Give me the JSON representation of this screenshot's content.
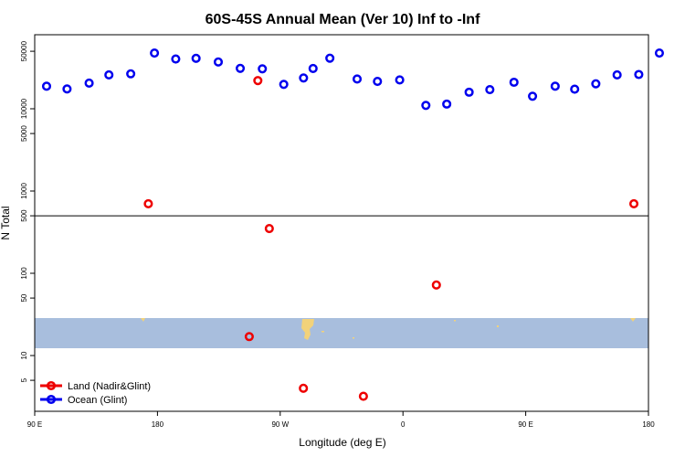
{
  "chart_data": {
    "type": "scatter",
    "title": "60S-45S Annual Mean (Ver 10)   Inf to -Inf",
    "xlabel": "Longitude (deg E)",
    "ylabel": "N Total",
    "y_scale": "log",
    "ylim": [
      2,
      80000
    ],
    "x_ticks": [
      {
        "value": 90,
        "label": "90 E"
      },
      {
        "value": 180,
        "label": "180"
      },
      {
        "value": 270,
        "label": "90 W"
      },
      {
        "value": 360,
        "label": "0"
      },
      {
        "value": 450,
        "label": "90 E"
      },
      {
        "value": 540,
        "label": "180"
      }
    ],
    "y_ticks": [
      {
        "value": 5,
        "label": "5"
      },
      {
        "value": 10,
        "label": "10"
      },
      {
        "value": 50,
        "label": "50"
      },
      {
        "value": 100,
        "label": "100"
      },
      {
        "value": 500,
        "label": "500"
      },
      {
        "value": 1000,
        "label": "1000"
      },
      {
        "value": 5000,
        "label": "5000"
      },
      {
        "value": 10000,
        "label": "10000"
      },
      {
        "value": 50000,
        "label": "50000"
      }
    ],
    "reference_line_y": 500,
    "map_strip": {
      "lat_range": "60S-45S",
      "ocean_color": "#a8bedd",
      "land_color": "#f2d27a"
    },
    "series": [
      {
        "name": "Land (Nadir&Glint)",
        "color": "#ee0000",
        "points": [
          [
            253.6,
            22000
          ],
          [
            173.3,
            700
          ],
          [
            262,
            350
          ],
          [
            384.5,
            72
          ],
          [
            247.3,
            17
          ],
          [
            287,
            4
          ],
          [
            331,
            3.2
          ],
          [
            529.3,
            700
          ]
        ]
      },
      {
        "name": "Ocean (Glint)",
        "color": "#0000ee",
        "points": [
          [
            98.7,
            18800
          ],
          [
            113.7,
            17400
          ],
          [
            129.9,
            20500
          ],
          [
            144.4,
            25800
          ],
          [
            160.4,
            26600
          ],
          [
            177.8,
            47600
          ],
          [
            193.4,
            40300
          ],
          [
            208.3,
            41000
          ],
          [
            224.6,
            37000
          ],
          [
            240.7,
            31000
          ],
          [
            256.9,
            30600
          ],
          [
            272.6,
            19800
          ],
          [
            287.1,
            23700
          ],
          [
            294.1,
            30900
          ],
          [
            306.4,
            41200
          ],
          [
            326.4,
            23000
          ],
          [
            341.3,
            21500
          ],
          [
            357.6,
            22400
          ],
          [
            376.8,
            11000
          ],
          [
            392.1,
            11400
          ],
          [
            408.5,
            15900
          ],
          [
            423.7,
            17100
          ],
          [
            441.4,
            21000
          ],
          [
            455.0,
            14200
          ],
          [
            471.6,
            18800
          ],
          [
            485.9,
            17300
          ],
          [
            501.4,
            20100
          ],
          [
            517.0,
            25800
          ],
          [
            532.9,
            26100
          ],
          [
            548,
            47600
          ]
        ]
      }
    ]
  }
}
